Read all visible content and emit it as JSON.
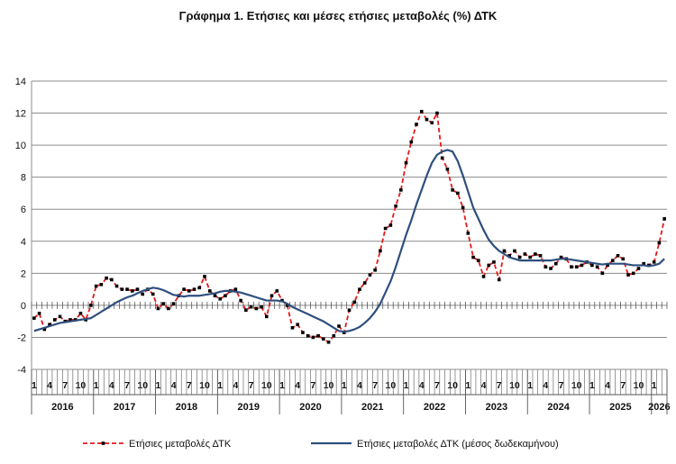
{
  "chart_data": {
    "type": "line",
    "title": "Γράφημα 1. Ετήσιες και μέσες ετήσιες μεταβολές (%) ΔΤΚ",
    "xlabel": "",
    "ylabel": "",
    "ylim": [
      -4,
      14
    ],
    "yticks": [
      "14",
      "12",
      "10",
      "8",
      "6",
      "4",
      "2",
      "0",
      "-2",
      "-4"
    ],
    "month_tick_labels": [
      "1",
      "4",
      "7",
      "10"
    ],
    "years": [
      "2016",
      "2017",
      "2018",
      "2019",
      "2020",
      "2021",
      "2022",
      "2023",
      "2024",
      "2025",
      "2026"
    ],
    "grid": true,
    "legend_position": "bottom",
    "start_period": "2016-01",
    "series": [
      {
        "name": "Ετήσιες μεταβολές ΔΤΚ",
        "color": "#e41a1c",
        "style": "dashed-markers",
        "values": [
          -0.8,
          -0.5,
          -1.5,
          -1.2,
          -0.9,
          -0.7,
          -1.0,
          -0.9,
          -0.9,
          -0.5,
          -0.9,
          0.0,
          1.2,
          1.3,
          1.7,
          1.6,
          1.2,
          1.0,
          1.0,
          0.9,
          1.0,
          0.7,
          1.0,
          0.7,
          -0.2,
          0.1,
          -0.2,
          0.1,
          0.6,
          1.0,
          0.9,
          1.0,
          1.1,
          1.8,
          0.9,
          0.6,
          0.4,
          0.6,
          0.9,
          1.0,
          0.3,
          -0.3,
          -0.1,
          -0.2,
          -0.1,
          -0.7,
          0.6,
          0.9,
          0.3,
          0.0,
          -1.4,
          -1.2,
          -1.7,
          -1.9,
          -2.0,
          -1.9,
          -2.1,
          -2.3,
          -1.9,
          -1.3,
          -1.7,
          -0.3,
          0.2,
          1.0,
          1.4,
          1.9,
          2.2,
          3.4,
          4.8,
          5.0,
          6.2,
          7.2,
          8.9,
          10.2,
          11.3,
          12.1,
          11.6,
          11.4,
          12.0,
          9.2,
          8.5,
          7.2,
          7.0,
          6.1,
          4.5,
          3.0,
          2.8,
          1.8,
          2.5,
          2.7,
          1.6,
          3.4,
          3.1,
          3.4,
          3.0,
          3.2,
          3.0,
          3.2,
          3.1,
          2.4,
          2.3,
          2.6,
          3.0,
          2.9,
          2.4,
          2.4,
          2.5,
          2.7,
          2.5,
          2.4,
          2.0,
          2.5,
          2.8,
          3.1,
          2.9,
          1.9,
          2.0,
          2.3,
          2.6,
          2.5,
          2.7,
          3.9,
          5.4
        ]
      },
      {
        "name": "Ετήσιες μεταβολές ΔΤΚ (μέσος δωδεκαμήνου)",
        "color": "#2e4f7e",
        "style": "solid",
        "values": [
          -1.6,
          -1.5,
          -1.4,
          -1.3,
          -1.2,
          -1.1,
          -1.05,
          -1.0,
          -0.95,
          -0.9,
          -0.85,
          -0.8,
          -0.6,
          -0.4,
          -0.2,
          0.0,
          0.2,
          0.35,
          0.5,
          0.6,
          0.75,
          0.9,
          1.0,
          1.1,
          1.05,
          0.95,
          0.8,
          0.65,
          0.6,
          0.55,
          0.6,
          0.6,
          0.6,
          0.65,
          0.7,
          0.75,
          0.85,
          0.9,
          0.9,
          0.85,
          0.8,
          0.7,
          0.6,
          0.5,
          0.4,
          0.3,
          0.3,
          0.3,
          0.25,
          0.1,
          -0.1,
          -0.25,
          -0.4,
          -0.55,
          -0.7,
          -0.85,
          -1.0,
          -1.2,
          -1.4,
          -1.6,
          -1.65,
          -1.6,
          -1.5,
          -1.35,
          -1.1,
          -0.8,
          -0.4,
          0.1,
          0.8,
          1.5,
          2.4,
          3.4,
          4.4,
          5.3,
          6.3,
          7.2,
          8.1,
          8.9,
          9.4,
          9.6,
          9.7,
          9.6,
          9.0,
          8.1,
          7.1,
          6.1,
          5.4,
          4.7,
          4.1,
          3.7,
          3.4,
          3.2,
          3.0,
          2.9,
          2.8,
          2.8,
          2.8,
          2.8,
          2.8,
          2.8,
          2.8,
          2.85,
          2.9,
          2.9,
          2.85,
          2.8,
          2.75,
          2.7,
          2.65,
          2.6,
          2.55,
          2.6,
          2.6,
          2.6,
          2.6,
          2.55,
          2.5,
          2.5,
          2.5,
          2.45,
          2.5,
          2.6,
          2.9
        ]
      }
    ]
  }
}
